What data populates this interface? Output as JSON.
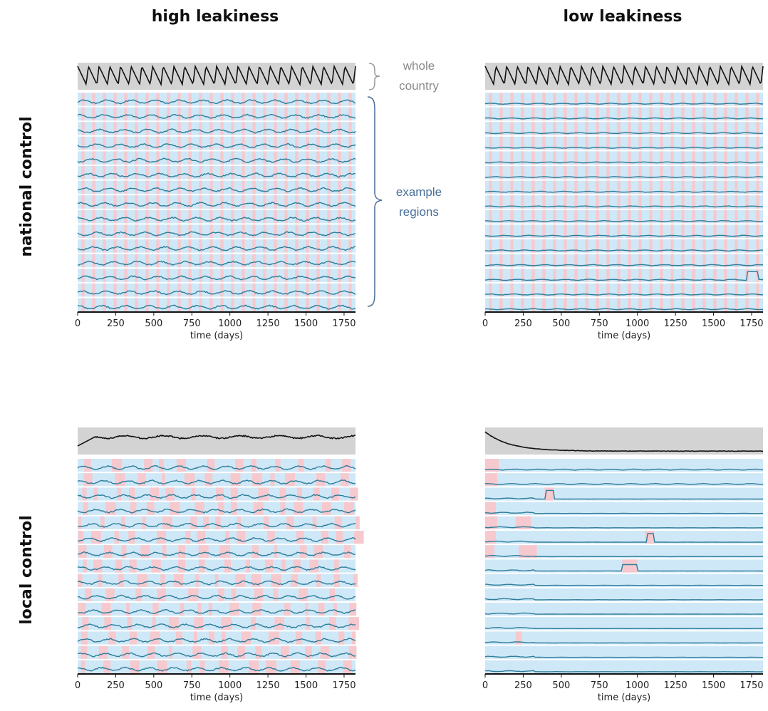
{
  "figure": {
    "column_titles": [
      "high leakiness",
      "low leakiness"
    ],
    "row_titles": [
      "national control",
      "local control"
    ],
    "annotations": {
      "whole_country_line1": "whole",
      "whole_country_line2": "country",
      "example_regions_line1": "example",
      "example_regions_line2": "regions"
    }
  },
  "chart_data": [
    {
      "type": "line",
      "panel": "national control / high leakiness",
      "xlabel": "time (days)",
      "xlim": [
        0,
        1825
      ],
      "xticks": [
        0,
        250,
        500,
        750,
        1000,
        1250,
        1500,
        1750
      ],
      "top_trace": "whole country",
      "whole_country_pattern": "regular sawtooth, ~26 cycles",
      "region_count": 15,
      "region_pattern": "persistent low-level fluctuating incidence with frequent small peaks",
      "colors": {
        "whole_country_bg": "#d3d3d3",
        "region_bg": "#cfe8f7",
        "lockdown_band": "#f6c9cf",
        "region_line": "#2e7d9a",
        "lockdown_line": "#c0392b"
      }
    },
    {
      "type": "line",
      "panel": "national control / low leakiness",
      "xlabel": "time (days)",
      "xlim": [
        0,
        1825
      ],
      "xticks": [
        0,
        250,
        500,
        750,
        1000,
        1250,
        1500,
        1750
      ],
      "top_trace": "whole country",
      "whole_country_pattern": "regular sawtooth, ~26 cycles",
      "region_count": 15,
      "region_pattern": "mostly flat; small early bumps; one late peak near day 1760",
      "colors": {
        "whole_country_bg": "#d3d3d3",
        "region_bg": "#cfe8f7",
        "lockdown_band": "#f6c9cf",
        "region_line": "#2e7d9a",
        "lockdown_line": "#c0392b"
      }
    },
    {
      "type": "line",
      "panel": "local control / high leakiness",
      "xlabel": "time (days)",
      "xlim": [
        0,
        1825
      ],
      "xticks": [
        0,
        250,
        500,
        750,
        1000,
        1250,
        1500,
        1750
      ],
      "top_trace": "whole country",
      "whole_country_pattern": "rises quickly then stays roughly constant",
      "region_count": 15,
      "region_pattern": "frequent local outbreaks with irregular local lockdowns",
      "colors": {
        "whole_country_bg": "#d3d3d3",
        "region_bg": "#cfe8f7",
        "lockdown_band": "#f6c9cf",
        "region_line": "#2e7d9a",
        "lockdown_line": "#c0392b"
      }
    },
    {
      "type": "line",
      "panel": "local control / low leakiness",
      "xlabel": "time (days)",
      "xlim": [
        0,
        1825
      ],
      "xticks": [
        0,
        250,
        500,
        750,
        1000,
        1250,
        1500,
        1750
      ],
      "top_trace": "whole country",
      "whole_country_pattern": "decays from high level to near zero by ~day 400",
      "region_count": 15,
      "region_pattern": "early outbreaks that die out; isolated peaks near days 420, 1090, 1000",
      "colors": {
        "whole_country_bg": "#d3d3d3",
        "region_bg": "#cfe8f7",
        "lockdown_band": "#f6c9cf",
        "region_line": "#2e7d9a",
        "lockdown_line": "#c0392b"
      }
    }
  ]
}
